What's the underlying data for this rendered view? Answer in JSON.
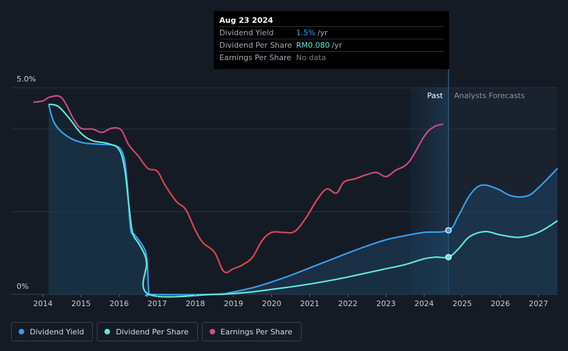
{
  "tooltip": {
    "date": "Aug 23 2024",
    "rows": [
      {
        "label": "Dividend Yield",
        "value": "1.5%",
        "unit": "/yr",
        "color": "#3b9eea"
      },
      {
        "label": "Dividend Per Share",
        "value": "RM0.080",
        "unit": "/yr",
        "color": "#5ee8d6"
      },
      {
        "label": "Earnings Per Share",
        "value": "No data",
        "unit": "",
        "color": "#7b818b"
      }
    ]
  },
  "regions": {
    "past": "Past",
    "forecast": "Analysts Forecasts"
  },
  "legend": [
    {
      "label": "Dividend Yield",
      "color": "#3b9eea"
    },
    {
      "label": "Dividend Per Share",
      "color": "#5ee8d6"
    },
    {
      "label": "Earnings Per Share",
      "color": "#d14c8d"
    }
  ],
  "chart_data": {
    "type": "line",
    "y_tick_labels": [
      "5.0%",
      "0%"
    ],
    "x_tick_labels": [
      "2014",
      "2015",
      "2016",
      "2017",
      "2018",
      "2019",
      "2020",
      "2021",
      "2022",
      "2023",
      "2024",
      "2025",
      "2026",
      "2027"
    ],
    "xlim": [
      2013.0,
      2027.5
    ],
    "ylim": [
      0,
      5.2
    ],
    "current_x": 2024.64,
    "series": [
      {
        "name": "Dividend Yield",
        "color": "#3b9eea",
        "style": "area",
        "points": [
          [
            2014.15,
            4.6
          ],
          [
            2014.3,
            4.15
          ],
          [
            2014.6,
            3.85
          ],
          [
            2015.0,
            3.68
          ],
          [
            2015.5,
            3.63
          ],
          [
            2015.9,
            3.6
          ],
          [
            2016.1,
            3.4
          ],
          [
            2016.2,
            2.8
          ],
          [
            2016.3,
            1.6
          ],
          [
            2016.4,
            1.45
          ],
          [
            2016.6,
            1.2
          ],
          [
            2016.72,
            0.9
          ],
          [
            2016.78,
            0.05
          ],
          [
            2016.85,
            0
          ],
          [
            2018.5,
            0
          ],
          [
            2019.0,
            0.06
          ],
          [
            2019.5,
            0.16
          ],
          [
            2020.0,
            0.3
          ],
          [
            2020.5,
            0.46
          ],
          [
            2021.0,
            0.64
          ],
          [
            2021.5,
            0.82
          ],
          [
            2022.0,
            1.0
          ],
          [
            2022.5,
            1.17
          ],
          [
            2023.0,
            1.32
          ],
          [
            2023.5,
            1.42
          ],
          [
            2024.0,
            1.5
          ],
          [
            2024.64,
            1.55
          ],
          [
            2024.9,
            1.9
          ],
          [
            2025.2,
            2.4
          ],
          [
            2025.5,
            2.64
          ],
          [
            2025.9,
            2.56
          ],
          [
            2026.3,
            2.38
          ],
          [
            2026.7,
            2.38
          ],
          [
            2027.0,
            2.58
          ],
          [
            2027.5,
            3.05
          ]
        ]
      },
      {
        "name": "Dividend Per Share",
        "color": "#5ee8d6",
        "style": "area",
        "points": [
          [
            2014.15,
            4.6
          ],
          [
            2014.4,
            4.55
          ],
          [
            2014.7,
            4.25
          ],
          [
            2015.0,
            3.9
          ],
          [
            2015.3,
            3.72
          ],
          [
            2015.7,
            3.65
          ],
          [
            2016.0,
            3.5
          ],
          [
            2016.15,
            3.0
          ],
          [
            2016.25,
            2.2
          ],
          [
            2016.35,
            1.5
          ],
          [
            2016.5,
            1.25
          ],
          [
            2016.65,
            1.0
          ],
          [
            2016.72,
            0.75
          ],
          [
            2016.78,
            0
          ],
          [
            2018.5,
            0
          ],
          [
            2019.0,
            0.02
          ],
          [
            2019.5,
            0.06
          ],
          [
            2020.0,
            0.12
          ],
          [
            2020.5,
            0.18
          ],
          [
            2021.0,
            0.25
          ],
          [
            2021.5,
            0.33
          ],
          [
            2022.0,
            0.42
          ],
          [
            2022.5,
            0.52
          ],
          [
            2023.0,
            0.62
          ],
          [
            2023.5,
            0.72
          ],
          [
            2024.0,
            0.86
          ],
          [
            2024.3,
            0.9
          ],
          [
            2024.64,
            0.9
          ],
          [
            2024.9,
            1.1
          ],
          [
            2025.2,
            1.4
          ],
          [
            2025.6,
            1.52
          ],
          [
            2026.0,
            1.44
          ],
          [
            2026.5,
            1.38
          ],
          [
            2027.0,
            1.5
          ],
          [
            2027.5,
            1.78
          ]
        ]
      },
      {
        "name": "Earnings Per Share",
        "color": "#d14c8d",
        "style": "line",
        "forecast_color": "#d14c8d",
        "past_color": "#e0474c",
        "points": [
          [
            2013.75,
            4.65
          ],
          [
            2014.0,
            4.68
          ],
          [
            2014.2,
            4.78
          ],
          [
            2014.5,
            4.75
          ],
          [
            2014.8,
            4.25
          ],
          [
            2015.0,
            4.02
          ],
          [
            2015.3,
            4.0
          ],
          [
            2015.55,
            3.92
          ],
          [
            2015.8,
            4.02
          ],
          [
            2016.05,
            3.98
          ],
          [
            2016.25,
            3.62
          ],
          [
            2016.5,
            3.35
          ],
          [
            2016.75,
            3.05
          ],
          [
            2017.0,
            2.98
          ],
          [
            2017.2,
            2.65
          ],
          [
            2017.5,
            2.25
          ],
          [
            2017.75,
            2.05
          ],
          [
            2018.0,
            1.55
          ],
          [
            2018.2,
            1.25
          ],
          [
            2018.5,
            1.02
          ],
          [
            2018.75,
            0.55
          ],
          [
            2019.0,
            0.62
          ],
          [
            2019.25,
            0.72
          ],
          [
            2019.5,
            0.9
          ],
          [
            2019.75,
            1.3
          ],
          [
            2020.0,
            1.5
          ],
          [
            2020.3,
            1.5
          ],
          [
            2020.6,
            1.52
          ],
          [
            2020.9,
            1.85
          ],
          [
            2021.2,
            2.3
          ],
          [
            2021.45,
            2.55
          ],
          [
            2021.7,
            2.45
          ],
          [
            2021.9,
            2.72
          ],
          [
            2022.2,
            2.8
          ],
          [
            2022.5,
            2.9
          ],
          [
            2022.75,
            2.95
          ],
          [
            2023.0,
            2.85
          ],
          [
            2023.25,
            3.0
          ],
          [
            2023.6,
            3.2
          ],
          [
            2024.0,
            3.82
          ],
          [
            2024.25,
            4.05
          ],
          [
            2024.5,
            4.12
          ]
        ]
      }
    ]
  }
}
